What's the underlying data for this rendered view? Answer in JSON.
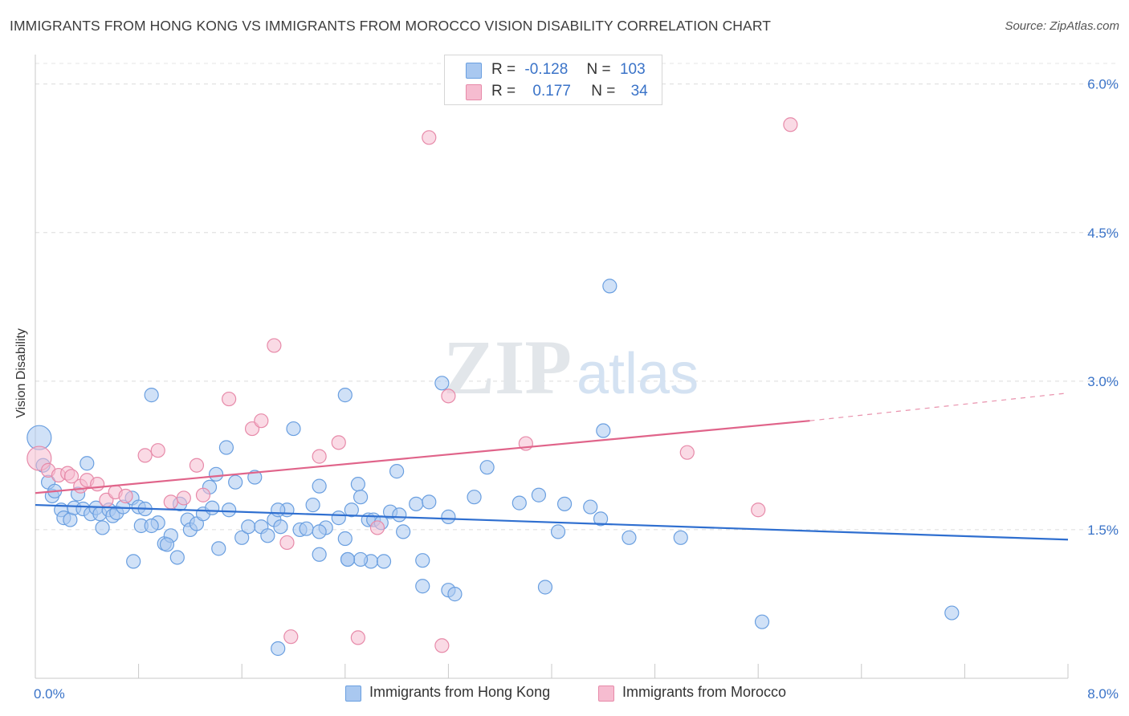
{
  "header": {
    "title": "IMMIGRANTS FROM HONG KONG VS IMMIGRANTS FROM MOROCCO VISION DISABILITY CORRELATION CHART",
    "source": "Source: ZipAtlas.com"
  },
  "watermark": {
    "zip": "ZIP",
    "atlas": "atlas"
  },
  "legend_top": {
    "r_label": "R =",
    "n_label": "N =",
    "rows": [
      {
        "r": "-0.128",
        "n": "103",
        "color": "#a9c8f0",
        "border": "#6a9fe0"
      },
      {
        "r": "0.177",
        "n": "34",
        "color": "#f6bcd0",
        "border": "#e78aa9"
      }
    ]
  },
  "chart_data": {
    "type": "scatter",
    "title": "IMMIGRANTS FROM HONG KONG VS IMMIGRANTS FROM MOROCCO VISION DISABILITY CORRELATION CHART",
    "xlabel": "",
    "ylabel": "Vision Disability",
    "xlim": [
      0,
      8.0
    ],
    "ylim": [
      0,
      6.2
    ],
    "x_tick_labels": [
      {
        "value": 0,
        "label": "0.0%"
      },
      {
        "value": 8.0,
        "label": "8.0%"
      }
    ],
    "y_tick_labels": [
      {
        "value": 1.5,
        "label": "1.5%"
      },
      {
        "value": 3.0,
        "label": "3.0%"
      },
      {
        "value": 4.5,
        "label": "4.5%"
      },
      {
        "value": 6.0,
        "label": "6.0%"
      }
    ],
    "grid": true,
    "legend_position": "bottom",
    "series": [
      {
        "name": "Immigrants from Hong Kong",
        "color": "#a9c8f0",
        "stroke": "#6a9fe0",
        "trend_color": "#2f6fd0",
        "trend": {
          "x0": 0.0,
          "y0": 1.75,
          "x1": 8.0,
          "y1": 1.4
        },
        "points": [
          [
            0.03,
            2.43
          ],
          [
            0.06,
            2.15
          ],
          [
            0.1,
            1.98
          ],
          [
            0.13,
            1.84
          ],
          [
            0.15,
            1.89
          ],
          [
            0.2,
            1.7
          ],
          [
            0.22,
            1.62
          ],
          [
            0.27,
            1.6
          ],
          [
            0.3,
            1.72
          ],
          [
            0.33,
            1.86
          ],
          [
            0.37,
            1.71
          ],
          [
            0.4,
            2.17
          ],
          [
            0.43,
            1.66
          ],
          [
            0.47,
            1.72
          ],
          [
            0.5,
            1.66
          ],
          [
            0.52,
            1.52
          ],
          [
            0.57,
            1.7
          ],
          [
            0.6,
            1.64
          ],
          [
            0.63,
            1.67
          ],
          [
            0.68,
            1.73
          ],
          [
            0.75,
            1.82
          ],
          [
            0.8,
            1.73
          ],
          [
            0.82,
            1.54
          ],
          [
            0.85,
            1.71
          ],
          [
            0.9,
            2.86
          ],
          [
            0.95,
            1.57
          ],
          [
            1.0,
            1.36
          ],
          [
            1.05,
            1.44
          ],
          [
            1.1,
            1.22
          ],
          [
            1.12,
            1.76
          ],
          [
            1.18,
            1.6
          ],
          [
            1.2,
            1.5
          ],
          [
            1.25,
            1.56
          ],
          [
            1.3,
            1.66
          ],
          [
            1.35,
            1.93
          ],
          [
            1.37,
            1.72
          ],
          [
            1.4,
            2.06
          ],
          [
            1.42,
            1.31
          ],
          [
            1.48,
            2.33
          ],
          [
            1.5,
            1.7
          ],
          [
            1.55,
            1.98
          ],
          [
            1.6,
            1.42
          ],
          [
            1.65,
            1.53
          ],
          [
            1.7,
            2.03
          ],
          [
            1.75,
            1.53
          ],
          [
            1.8,
            1.44
          ],
          [
            1.85,
            1.6
          ],
          [
            1.9,
            1.53
          ],
          [
            1.95,
            1.7
          ],
          [
            2.0,
            2.52
          ],
          [
            2.05,
            1.5
          ],
          [
            2.1,
            1.51
          ],
          [
            2.15,
            1.75
          ],
          [
            2.2,
            1.94
          ],
          [
            2.25,
            1.52
          ],
          [
            2.35,
            1.62
          ],
          [
            2.4,
            1.41
          ],
          [
            2.45,
            1.7
          ],
          [
            2.5,
            1.96
          ],
          [
            2.52,
            1.83
          ],
          [
            2.58,
            1.6
          ],
          [
            2.62,
            1.6
          ],
          [
            2.68,
            1.57
          ],
          [
            2.75,
            1.68
          ],
          [
            2.8,
            2.09
          ],
          [
            2.85,
            1.48
          ],
          [
            2.95,
            1.76
          ],
          [
            3.0,
            1.19
          ],
          [
            3.05,
            1.78
          ],
          [
            3.2,
            1.63
          ],
          [
            3.4,
            1.83
          ],
          [
            3.5,
            2.13
          ],
          [
            3.75,
            1.77
          ],
          [
            3.9,
            1.85
          ],
          [
            4.05,
            1.48
          ],
          [
            4.1,
            1.76
          ],
          [
            4.3,
            1.73
          ],
          [
            4.38,
            1.61
          ],
          [
            4.6,
            1.42
          ],
          [
            5.0,
            1.42
          ],
          [
            1.88,
            1.7
          ],
          [
            2.6,
            1.18
          ],
          [
            2.7,
            1.18
          ],
          [
            2.42,
            1.2
          ],
          [
            2.52,
            1.2
          ],
          [
            2.2,
            1.25
          ],
          [
            2.4,
            2.86
          ],
          [
            3.15,
            2.98
          ],
          [
            0.76,
            1.18
          ],
          [
            3.0,
            0.93
          ],
          [
            3.2,
            0.89
          ],
          [
            4.4,
            2.5
          ],
          [
            3.95,
            0.92
          ],
          [
            2.42,
            1.2
          ],
          [
            1.02,
            1.35
          ],
          [
            1.88,
            0.3
          ],
          [
            3.25,
            0.85
          ],
          [
            4.45,
            3.96
          ],
          [
            5.63,
            0.57
          ],
          [
            7.1,
            0.66
          ],
          [
            2.2,
            1.48
          ],
          [
            0.9,
            1.54
          ],
          [
            2.82,
            1.65
          ]
        ]
      },
      {
        "name": "Immigrants from Morocco",
        "color": "#f6bcd0",
        "stroke": "#e78aa9",
        "trend_color": "#e0648a",
        "trend": {
          "x0": 0.0,
          "y0": 1.87,
          "x1": 6.0,
          "y1": 2.6
        },
        "trend_dashed": {
          "x0": 6.0,
          "y0": 2.6,
          "x1": 8.0,
          "y1": 2.88
        },
        "points": [
          [
            0.03,
            2.22
          ],
          [
            0.1,
            2.1
          ],
          [
            0.18,
            2.05
          ],
          [
            0.25,
            2.07
          ],
          [
            0.28,
            2.04
          ],
          [
            0.35,
            1.94
          ],
          [
            0.4,
            2.0
          ],
          [
            0.48,
            1.96
          ],
          [
            0.55,
            1.8
          ],
          [
            0.62,
            1.88
          ],
          [
            0.7,
            1.84
          ],
          [
            0.85,
            2.25
          ],
          [
            0.95,
            2.3
          ],
          [
            1.05,
            1.78
          ],
          [
            1.15,
            1.82
          ],
          [
            1.25,
            2.15
          ],
          [
            1.3,
            1.85
          ],
          [
            1.5,
            2.82
          ],
          [
            1.68,
            2.52
          ],
          [
            1.75,
            2.6
          ],
          [
            1.85,
            3.36
          ],
          [
            1.95,
            1.37
          ],
          [
            2.2,
            2.24
          ],
          [
            2.35,
            2.38
          ],
          [
            2.65,
            1.52
          ],
          [
            3.05,
            5.46
          ],
          [
            3.2,
            2.85
          ],
          [
            3.8,
            2.37
          ],
          [
            5.05,
            2.28
          ],
          [
            5.6,
            1.7
          ],
          [
            5.85,
            5.59
          ],
          [
            1.98,
            0.42
          ],
          [
            2.5,
            0.41
          ],
          [
            3.15,
            0.33
          ]
        ]
      }
    ]
  },
  "bottom_legend": {
    "items": [
      {
        "label": "Immigrants from Hong Kong",
        "color": "#a9c8f0",
        "border": "#6a9fe0"
      },
      {
        "label": "Immigrants from Morocco",
        "color": "#f6bcd0",
        "border": "#e78aa9"
      }
    ]
  }
}
